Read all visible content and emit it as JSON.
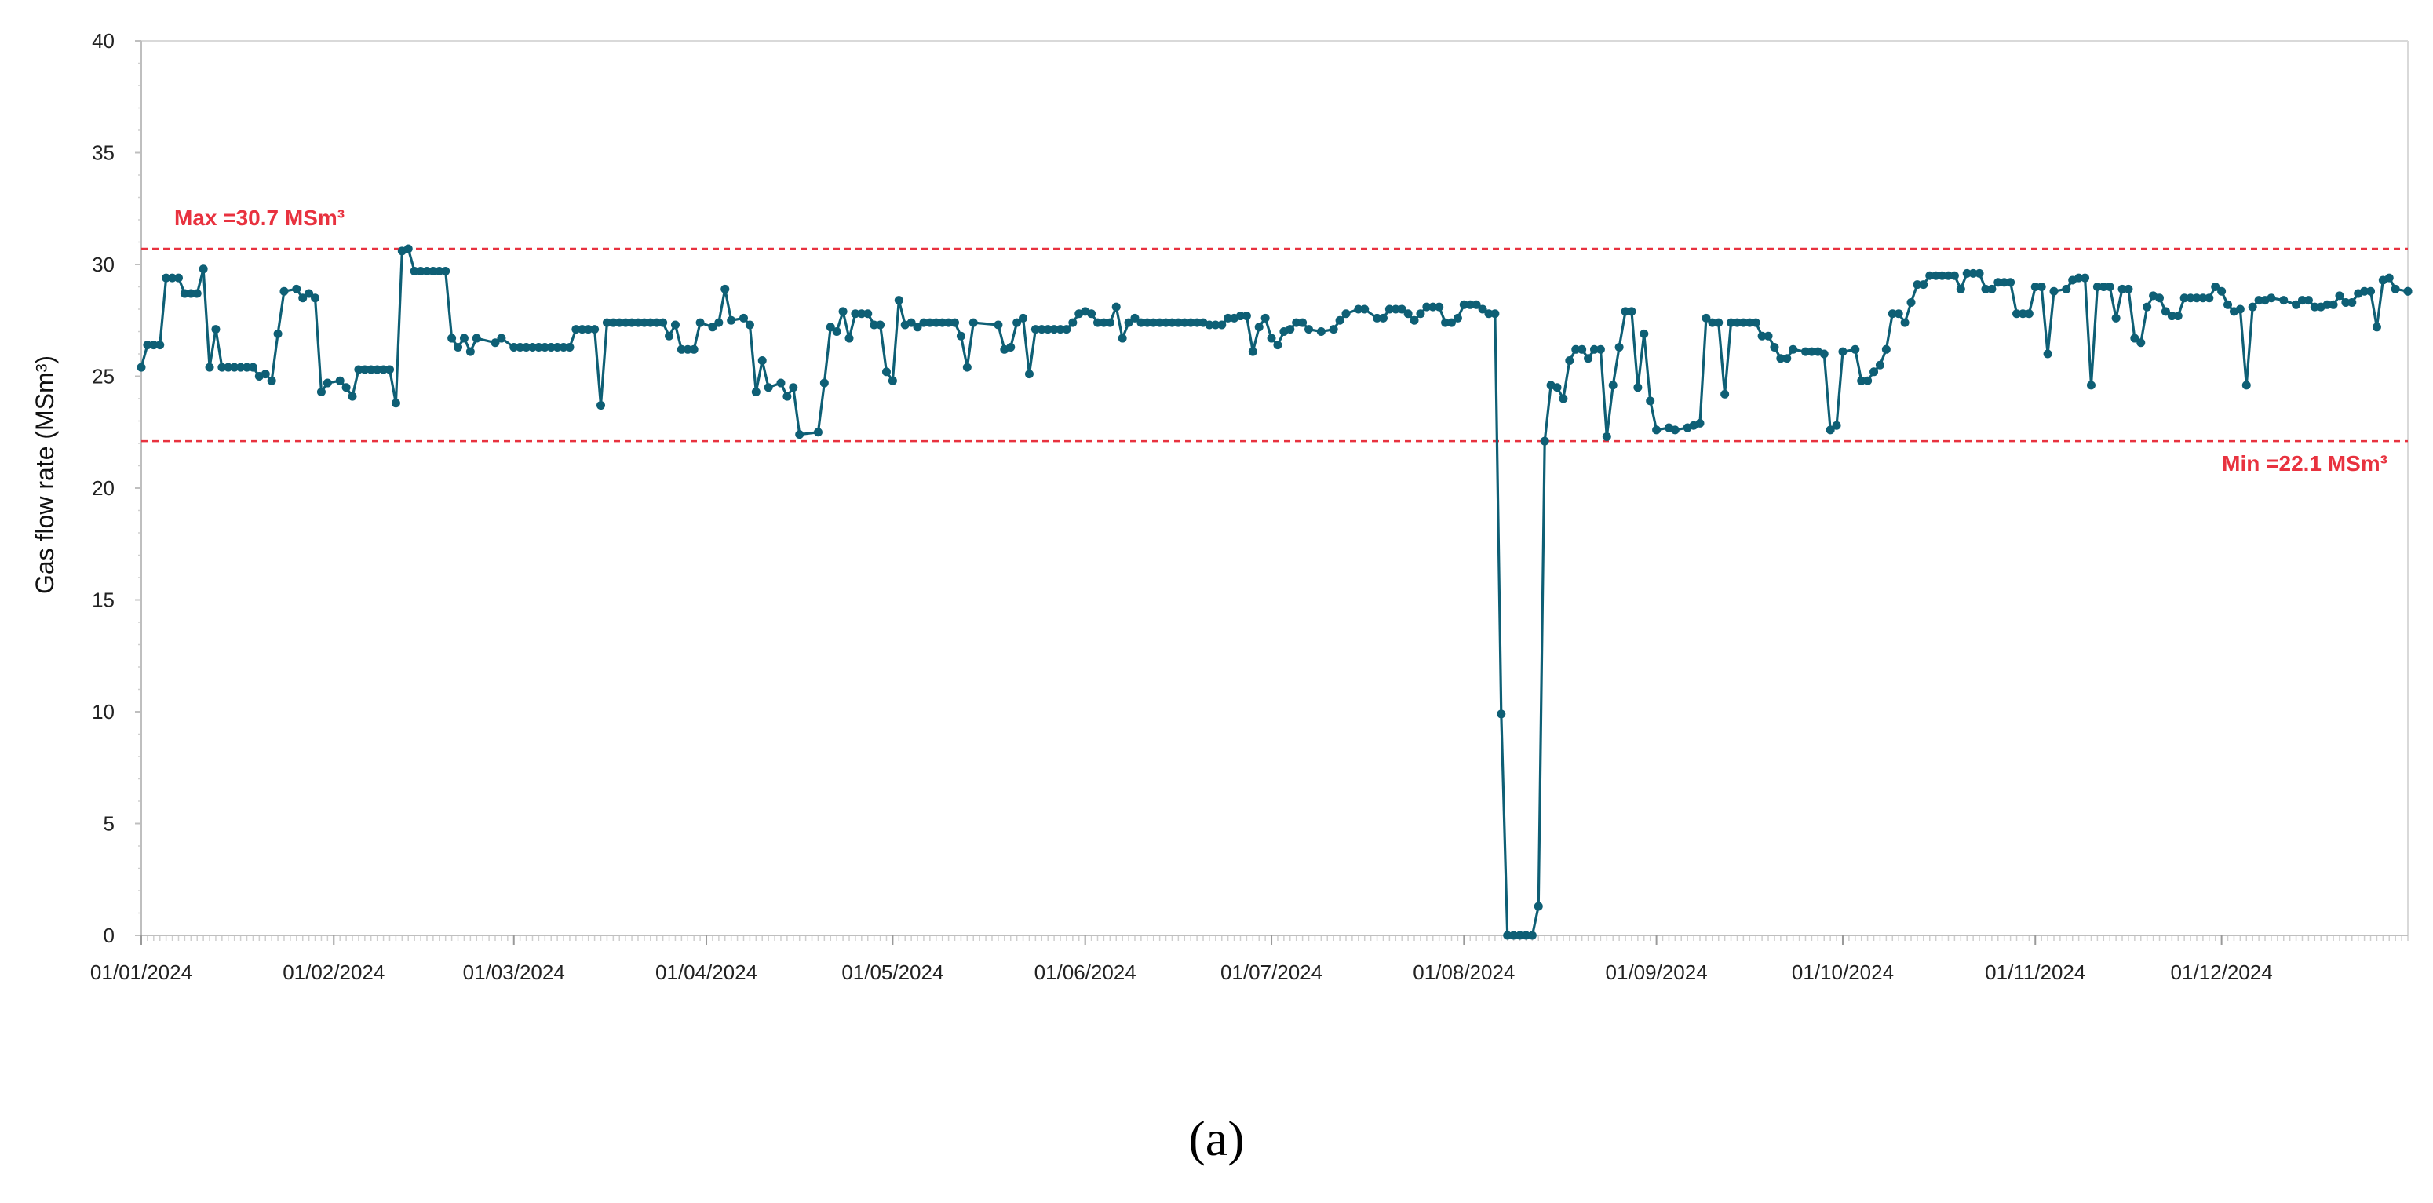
{
  "caption": "(a)",
  "colors": {
    "series": "#0e5f75",
    "reference": "#e8323f",
    "axis": "#bfbfbf"
  },
  "reference_lines": [
    {
      "label": "Max =30.7 MSm³",
      "value": 30.7,
      "position": "left"
    },
    {
      "label": "Min =22.1 MSm³",
      "value": 22.1,
      "position": "right"
    }
  ],
  "chart_data": {
    "type": "line",
    "title": "",
    "xlabel": "",
    "ylabel": "Gas flow rate (MSm³)",
    "ylim": [
      0,
      40
    ],
    "y_ticks": [
      0,
      5,
      10,
      15,
      20,
      25,
      30,
      35,
      40
    ],
    "xlim": [
      "2024-01-01",
      "2024-12-31"
    ],
    "x_ticks": [
      "2024-01-01",
      "2024-02-01",
      "2024-03-01",
      "2024-04-01",
      "2024-05-01",
      "2024-06-01",
      "2024-07-01",
      "2024-08-01",
      "2024-09-01",
      "2024-10-01",
      "2024-11-01",
      "2024-12-01"
    ],
    "x_tick_labels": [
      "01/01/2024",
      "01/02/2024",
      "01/03/2024",
      "01/04/2024",
      "01/05/2024",
      "01/06/2024",
      "01/07/2024",
      "01/08/2024",
      "01/09/2024",
      "01/10/2024",
      "01/11/2024",
      "01/12/2024"
    ],
    "grid": false,
    "legend": "none",
    "series": [
      {
        "markers": true,
        "points": [
          [
            "2024-01-01",
            25.4
          ],
          [
            "2024-01-02",
            26.4
          ],
          [
            "2024-01-04",
            26.4
          ],
          [
            "2024-01-05",
            29.4
          ],
          [
            "2024-01-07",
            29.4
          ],
          [
            "2024-01-08",
            28.7
          ],
          [
            "2024-01-10",
            28.7
          ],
          [
            "2024-01-11",
            29.8
          ],
          [
            "2024-01-12",
            25.4
          ],
          [
            "2024-01-13",
            27.1
          ],
          [
            "2024-01-14",
            25.4
          ],
          [
            "2024-01-19",
            25.4
          ],
          [
            "2024-01-20",
            25.0
          ],
          [
            "2024-01-21",
            25.1
          ],
          [
            "2024-01-22",
            24.8
          ],
          [
            "2024-01-23",
            26.9
          ],
          [
            "2024-01-24",
            28.8
          ],
          [
            "2024-01-26",
            28.9
          ],
          [
            "2024-01-27",
            28.5
          ],
          [
            "2024-01-28",
            28.7
          ],
          [
            "2024-01-29",
            28.5
          ],
          [
            "2024-01-30",
            24.3
          ],
          [
            "2024-01-31",
            24.7
          ],
          [
            "2024-02-02",
            24.8
          ],
          [
            "2024-02-03",
            24.5
          ],
          [
            "2024-02-04",
            24.1
          ],
          [
            "2024-02-05",
            25.3
          ],
          [
            "2024-02-10",
            25.3
          ],
          [
            "2024-02-11",
            23.8
          ],
          [
            "2024-02-12",
            30.6
          ],
          [
            "2024-02-13",
            30.7
          ],
          [
            "2024-02-14",
            29.7
          ],
          [
            "2024-02-19",
            29.7
          ],
          [
            "2024-02-20",
            26.7
          ],
          [
            "2024-02-21",
            26.3
          ],
          [
            "2024-02-22",
            26.7
          ],
          [
            "2024-02-23",
            26.1
          ],
          [
            "2024-02-24",
            26.7
          ],
          [
            "2024-02-27",
            26.5
          ],
          [
            "2024-02-28",
            26.7
          ],
          [
            "2024-03-01",
            26.3
          ],
          [
            "2024-03-10",
            26.3
          ],
          [
            "2024-03-11",
            27.1
          ],
          [
            "2024-03-14",
            27.1
          ],
          [
            "2024-03-15",
            23.7
          ],
          [
            "2024-03-16",
            27.4
          ],
          [
            "2024-03-25",
            27.4
          ],
          [
            "2024-03-26",
            26.8
          ],
          [
            "2024-03-27",
            27.3
          ],
          [
            "2024-03-28",
            26.2
          ],
          [
            "2024-03-30",
            26.2
          ],
          [
            "2024-03-31",
            27.4
          ],
          [
            "2024-04-02",
            27.2
          ],
          [
            "2024-04-03",
            27.4
          ],
          [
            "2024-04-04",
            28.9
          ],
          [
            "2024-04-05",
            27.5
          ],
          [
            "2024-04-07",
            27.6
          ],
          [
            "2024-04-08",
            27.3
          ],
          [
            "2024-04-09",
            24.3
          ],
          [
            "2024-04-10",
            25.7
          ],
          [
            "2024-04-11",
            24.5
          ],
          [
            "2024-04-13",
            24.7
          ],
          [
            "2024-04-14",
            24.1
          ],
          [
            "2024-04-15",
            24.5
          ],
          [
            "2024-04-16",
            22.4
          ],
          [
            "2024-04-19",
            22.5
          ],
          [
            "2024-04-20",
            24.7
          ],
          [
            "2024-04-21",
            27.2
          ],
          [
            "2024-04-22",
            27.0
          ],
          [
            "2024-04-23",
            27.9
          ],
          [
            "2024-04-24",
            26.7
          ],
          [
            "2024-04-25",
            27.8
          ],
          [
            "2024-04-27",
            27.8
          ],
          [
            "2024-04-28",
            27.3
          ],
          [
            "2024-04-29",
            27.3
          ],
          [
            "2024-04-30",
            25.2
          ],
          [
            "2024-05-01",
            24.8
          ],
          [
            "2024-05-02",
            28.4
          ],
          [
            "2024-05-03",
            27.3
          ],
          [
            "2024-05-04",
            27.4
          ],
          [
            "2024-05-05",
            27.2
          ],
          [
            "2024-05-06",
            27.4
          ],
          [
            "2024-05-11",
            27.4
          ],
          [
            "2024-05-12",
            26.8
          ],
          [
            "2024-05-13",
            25.4
          ],
          [
            "2024-05-14",
            27.4
          ],
          [
            "2024-05-18",
            27.3
          ],
          [
            "2024-05-19",
            26.2
          ],
          [
            "2024-05-20",
            26.3
          ],
          [
            "2024-05-21",
            27.4
          ],
          [
            "2024-05-22",
            27.6
          ],
          [
            "2024-05-23",
            25.1
          ],
          [
            "2024-05-24",
            27.1
          ],
          [
            "2024-05-29",
            27.1
          ],
          [
            "2024-05-30",
            27.4
          ],
          [
            "2024-05-31",
            27.8
          ],
          [
            "2024-06-01",
            27.9
          ],
          [
            "2024-06-02",
            27.8
          ],
          [
            "2024-06-03",
            27.4
          ],
          [
            "2024-06-05",
            27.4
          ],
          [
            "2024-06-06",
            28.1
          ],
          [
            "2024-06-07",
            26.7
          ],
          [
            "2024-06-08",
            27.4
          ],
          [
            "2024-06-09",
            27.6
          ],
          [
            "2024-06-10",
            27.4
          ],
          [
            "2024-06-20",
            27.4
          ],
          [
            "2024-06-21",
            27.3
          ],
          [
            "2024-06-23",
            27.3
          ],
          [
            "2024-06-24",
            27.6
          ],
          [
            "2024-06-25",
            27.6
          ],
          [
            "2024-06-26",
            27.7
          ],
          [
            "2024-06-27",
            27.7
          ],
          [
            "2024-06-28",
            26.1
          ],
          [
            "2024-06-29",
            27.2
          ],
          [
            "2024-06-30",
            27.6
          ],
          [
            "2024-07-01",
            26.7
          ],
          [
            "2024-07-02",
            26.4
          ],
          [
            "2024-07-03",
            27.0
          ],
          [
            "2024-07-04",
            27.1
          ],
          [
            "2024-07-05",
            27.4
          ],
          [
            "2024-07-06",
            27.4
          ],
          [
            "2024-07-07",
            27.1
          ],
          [
            "2024-07-09",
            27.0
          ],
          [
            "2024-07-11",
            27.1
          ],
          [
            "2024-07-12",
            27.5
          ],
          [
            "2024-07-13",
            27.8
          ],
          [
            "2024-07-15",
            28.0
          ],
          [
            "2024-07-16",
            28.0
          ],
          [
            "2024-07-18",
            27.6
          ],
          [
            "2024-07-19",
            27.6
          ],
          [
            "2024-07-20",
            28.0
          ],
          [
            "2024-07-22",
            28.0
          ],
          [
            "2024-07-23",
            27.8
          ],
          [
            "2024-07-24",
            27.5
          ],
          [
            "2024-07-25",
            27.8
          ],
          [
            "2024-07-26",
            28.1
          ],
          [
            "2024-07-28",
            28.1
          ],
          [
            "2024-07-29",
            27.4
          ],
          [
            "2024-07-30",
            27.4
          ],
          [
            "2024-07-31",
            27.6
          ],
          [
            "2024-08-01",
            28.2
          ],
          [
            "2024-08-03",
            28.2
          ],
          [
            "2024-08-04",
            28.0
          ],
          [
            "2024-08-05",
            27.8
          ],
          [
            "2024-08-06",
            27.8
          ],
          [
            "2024-08-07",
            9.9
          ],
          [
            "2024-08-08",
            0.0
          ],
          [
            "2024-08-12",
            0.0
          ],
          [
            "2024-08-13",
            1.3
          ],
          [
            "2024-08-14",
            22.1
          ],
          [
            "2024-08-15",
            24.6
          ],
          [
            "2024-08-16",
            24.5
          ],
          [
            "2024-08-17",
            24.0
          ],
          [
            "2024-08-18",
            25.7
          ],
          [
            "2024-08-19",
            26.2
          ],
          [
            "2024-08-20",
            26.2
          ],
          [
            "2024-08-21",
            25.8
          ],
          [
            "2024-08-22",
            26.2
          ],
          [
            "2024-08-23",
            26.2
          ],
          [
            "2024-08-24",
            22.3
          ],
          [
            "2024-08-25",
            24.6
          ],
          [
            "2024-08-26",
            26.3
          ],
          [
            "2024-08-27",
            27.9
          ],
          [
            "2024-08-28",
            27.9
          ],
          [
            "2024-08-29",
            24.5
          ],
          [
            "2024-08-30",
            26.9
          ],
          [
            "2024-08-31",
            23.9
          ],
          [
            "2024-09-01",
            22.6
          ],
          [
            "2024-09-03",
            22.7
          ],
          [
            "2024-09-04",
            22.6
          ],
          [
            "2024-09-06",
            22.7
          ],
          [
            "2024-09-07",
            22.8
          ],
          [
            "2024-09-08",
            22.9
          ],
          [
            "2024-09-09",
            27.6
          ],
          [
            "2024-09-10",
            27.4
          ],
          [
            "2024-09-11",
            27.4
          ],
          [
            "2024-09-12",
            24.2
          ],
          [
            "2024-09-13",
            27.4
          ],
          [
            "2024-09-17",
            27.4
          ],
          [
            "2024-09-18",
            26.8
          ],
          [
            "2024-09-19",
            26.8
          ],
          [
            "2024-09-20",
            26.3
          ],
          [
            "2024-09-21",
            25.8
          ],
          [
            "2024-09-22",
            25.8
          ],
          [
            "2024-09-23",
            26.2
          ],
          [
            "2024-09-25",
            26.1
          ],
          [
            "2024-09-27",
            26.1
          ],
          [
            "2024-09-28",
            26.0
          ],
          [
            "2024-09-29",
            22.6
          ],
          [
            "2024-09-30",
            22.8
          ],
          [
            "2024-10-01",
            26.1
          ],
          [
            "2024-10-03",
            26.2
          ],
          [
            "2024-10-04",
            24.8
          ],
          [
            "2024-10-05",
            24.8
          ],
          [
            "2024-10-06",
            25.2
          ],
          [
            "2024-10-07",
            25.5
          ],
          [
            "2024-10-08",
            26.2
          ],
          [
            "2024-10-09",
            27.8
          ],
          [
            "2024-10-10",
            27.8
          ],
          [
            "2024-10-11",
            27.4
          ],
          [
            "2024-10-12",
            28.3
          ],
          [
            "2024-10-13",
            29.1
          ],
          [
            "2024-10-14",
            29.1
          ],
          [
            "2024-10-15",
            29.5
          ],
          [
            "2024-10-19",
            29.5
          ],
          [
            "2024-10-20",
            28.9
          ],
          [
            "2024-10-21",
            29.6
          ],
          [
            "2024-10-23",
            29.6
          ],
          [
            "2024-10-24",
            28.9
          ],
          [
            "2024-10-25",
            28.9
          ],
          [
            "2024-10-26",
            29.2
          ],
          [
            "2024-10-28",
            29.2
          ],
          [
            "2024-10-29",
            27.8
          ],
          [
            "2024-10-31",
            27.8
          ],
          [
            "2024-11-01",
            29.0
          ],
          [
            "2024-11-02",
            29.0
          ],
          [
            "2024-11-03",
            26.0
          ],
          [
            "2024-11-04",
            28.8
          ],
          [
            "2024-11-06",
            28.9
          ],
          [
            "2024-11-07",
            29.3
          ],
          [
            "2024-11-08",
            29.4
          ],
          [
            "2024-11-09",
            29.4
          ],
          [
            "2024-11-10",
            24.6
          ],
          [
            "2024-11-11",
            29.0
          ],
          [
            "2024-11-13",
            29.0
          ],
          [
            "2024-11-14",
            27.6
          ],
          [
            "2024-11-15",
            28.9
          ],
          [
            "2024-11-16",
            28.9
          ],
          [
            "2024-11-17",
            26.7
          ],
          [
            "2024-11-18",
            26.5
          ],
          [
            "2024-11-19",
            28.1
          ],
          [
            "2024-11-20",
            28.6
          ],
          [
            "2024-11-21",
            28.5
          ],
          [
            "2024-11-22",
            27.9
          ],
          [
            "2024-11-23",
            27.7
          ],
          [
            "2024-11-24",
            27.7
          ],
          [
            "2024-11-25",
            28.5
          ],
          [
            "2024-11-29",
            28.5
          ],
          [
            "2024-11-30",
            29.0
          ],
          [
            "2024-12-01",
            28.8
          ],
          [
            "2024-12-02",
            28.2
          ],
          [
            "2024-12-03",
            27.9
          ],
          [
            "2024-12-04",
            28.0
          ],
          [
            "2024-12-05",
            24.6
          ],
          [
            "2024-12-06",
            28.1
          ],
          [
            "2024-12-07",
            28.4
          ],
          [
            "2024-12-08",
            28.4
          ],
          [
            "2024-12-09",
            28.5
          ],
          [
            "2024-12-11",
            28.4
          ],
          [
            "2024-12-13",
            28.2
          ],
          [
            "2024-12-14",
            28.4
          ],
          [
            "2024-12-15",
            28.4
          ],
          [
            "2024-12-16",
            28.1
          ],
          [
            "2024-12-17",
            28.1
          ],
          [
            "2024-12-18",
            28.2
          ],
          [
            "2024-12-19",
            28.2
          ],
          [
            "2024-12-20",
            28.6
          ],
          [
            "2024-12-21",
            28.3
          ],
          [
            "2024-12-22",
            28.3
          ],
          [
            "2024-12-23",
            28.7
          ],
          [
            "2024-12-24",
            28.8
          ],
          [
            "2024-12-25",
            28.8
          ],
          [
            "2024-12-26",
            27.2
          ],
          [
            "2024-12-27",
            29.3
          ],
          [
            "2024-12-28",
            29.4
          ],
          [
            "2024-12-29",
            28.9
          ],
          [
            "2024-12-31",
            28.8
          ]
        ]
      }
    ]
  }
}
